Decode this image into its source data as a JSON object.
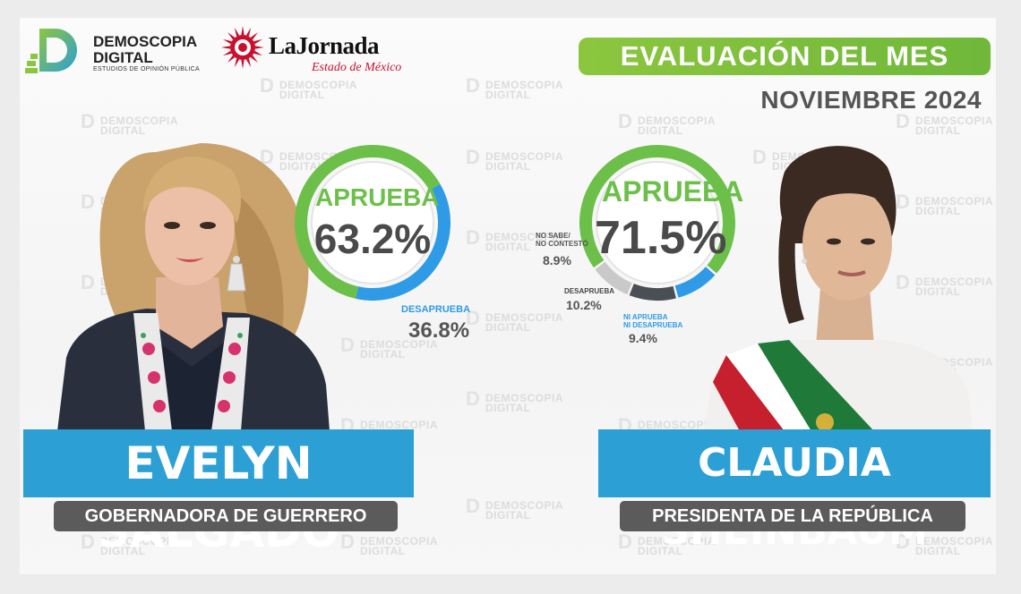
{
  "brands": {
    "demoscopia_line1": "DEMOSCOPIA",
    "demoscopia_line2": "DIGITAL",
    "demoscopia_sub": "ESTUDIOS DE OPINIÓN PÚBLICA",
    "lajornada_name": "LaJornada",
    "lajornada_sub": "Estado de México",
    "watermark": "DEMOSCOPIA\nDIGITAL"
  },
  "header": {
    "title": "EVALUACIÓN DEL MES",
    "period": "NOVIEMBRE 2024"
  },
  "colors": {
    "approve": "#6cc04a",
    "disapprove": "#2f9be6",
    "neither": "#2f9be6",
    "no_answer": "#c9c9c9",
    "disapprove_dark": "#4a4f55",
    "name_bar": "#2c9fd5",
    "title_bar": "#5b5b5b",
    "eval_pill": "#8cc63f"
  },
  "left": {
    "name": "EVELYN SALGADO",
    "role": "GOBERNADORA DE GUERRERO"
  },
  "right": {
    "name": "CLAUDIA SHEINBAUM",
    "role": "PRESIDENTA DE LA REPÚBLICA"
  },
  "chart_data": [
    {
      "type": "pie",
      "subject": "EVELYN SALGADO",
      "slices": [
        {
          "label": "APRUEBA",
          "value": 63.2,
          "display": "63.2%"
        },
        {
          "label": "DESAPRUEBA",
          "value": 36.8,
          "display": "36.8%"
        }
      ]
    },
    {
      "type": "pie",
      "subject": "CLAUDIA SHEINBAUM",
      "slices": [
        {
          "label": "APRUEBA",
          "value": 71.5,
          "display": "71.5%"
        },
        {
          "label": "NI APRUEBA NI DESAPRUEBA",
          "label_lines": [
            "NI APRUEBA",
            "NI DESAPRUEBA"
          ],
          "value": 9.4,
          "display": "9.4%"
        },
        {
          "label": "DESAPRUEBA",
          "value": 10.2,
          "display": "10.2%"
        },
        {
          "label": "NO SABE/ NO CONTESTÓ",
          "label_lines": [
            "NO SABE/",
            "NO CONTESTÓ"
          ],
          "value": 8.9,
          "display": "8.9%"
        }
      ]
    }
  ]
}
